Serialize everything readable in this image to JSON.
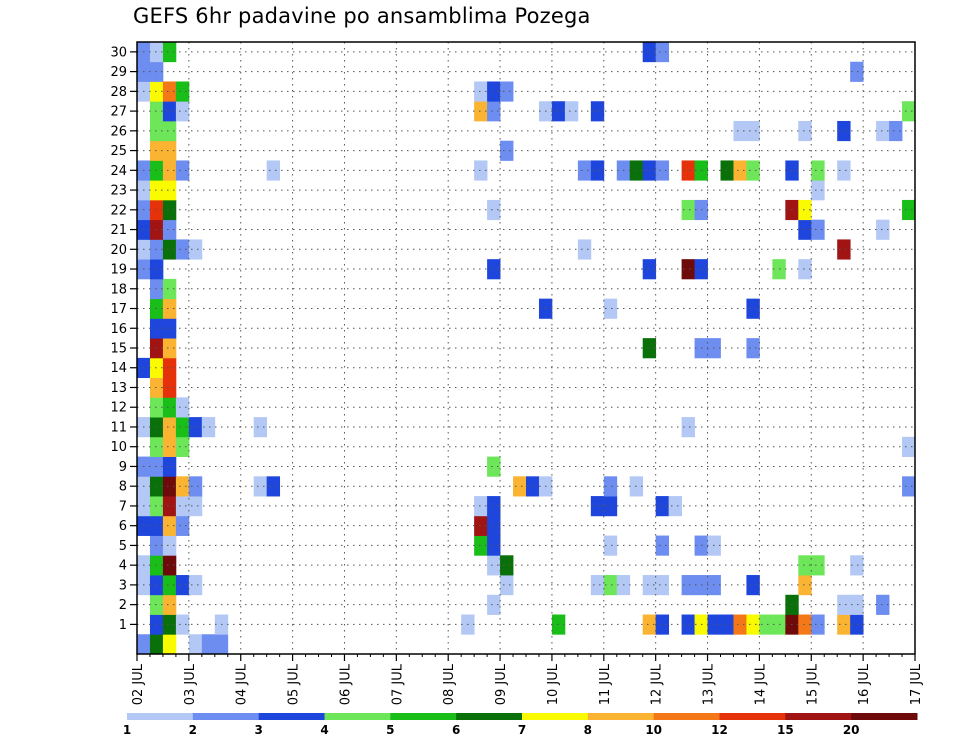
{
  "chart_data": {
    "type": "heatmap",
    "title": "GEFS 6hr padavine po ansamblima Pozega",
    "xlabel": "",
    "ylabel": "",
    "x_tick_labels": [
      "02 JUL",
      "03 JUL",
      "04 JUL",
      "05 JUL",
      "06 JUL",
      "07 JUL",
      "08 JUL",
      "09 JUL",
      "10 JUL",
      "11 JUL",
      "12 JUL",
      "13 JUL",
      "14 JUL",
      "15 JUL",
      "16 JUL",
      "17 JUL"
    ],
    "y_tick_labels": [
      "1",
      "2",
      "3",
      "4",
      "5",
      "6",
      "7",
      "8",
      "9",
      "10",
      "11",
      "12",
      "13",
      "14",
      "15",
      "16",
      "17",
      "18",
      "19",
      "20",
      "21",
      "22",
      "23",
      "24",
      "25",
      "26",
      "27",
      "28",
      "29",
      "30"
    ],
    "x_range": [
      "02 JUL",
      "17 JUL"
    ],
    "y_range": [
      0,
      30
    ],
    "step_hours": 6,
    "grid": true,
    "colorbar": {
      "position": "bottom",
      "labels": [
        "1",
        "2",
        "3",
        "4",
        "5",
        "6",
        "7",
        "8",
        "10",
        "12",
        "15",
        "20"
      ],
      "colors": [
        "#b4c8f5",
        "#6d8ef0",
        "#1e46dc",
        "#6ee65a",
        "#19be19",
        "#0a700a",
        "#fafa00",
        "#fab432",
        "#f57818",
        "#e6320a",
        "#a01414",
        "#6e0a0a"
      ]
    },
    "cells": [
      {
        "m": 0,
        "t": 0,
        "c": 2
      },
      {
        "m": 0,
        "t": 1,
        "c": 6
      },
      {
        "m": 0,
        "t": 2,
        "c": 7
      },
      {
        "m": 0,
        "t": 4,
        "c": 1
      },
      {
        "m": 0,
        "t": 5,
        "c": 2
      },
      {
        "m": 0,
        "t": 6,
        "c": 2
      },
      {
        "m": 1,
        "t": 1,
        "c": 3
      },
      {
        "m": 1,
        "t": 2,
        "c": 6
      },
      {
        "m": 1,
        "t": 3,
        "c": 1
      },
      {
        "m": 1,
        "t": 6,
        "c": 1
      },
      {
        "m": 1,
        "t": 25,
        "c": 1
      },
      {
        "m": 1,
        "t": 32,
        "c": 5
      },
      {
        "m": 1,
        "t": 39,
        "c": 8
      },
      {
        "m": 1,
        "t": 40,
        "c": 3
      },
      {
        "m": 1,
        "t": 42,
        "c": 3
      },
      {
        "m": 1,
        "t": 43,
        "c": 7
      },
      {
        "m": 1,
        "t": 44,
        "c": 3
      },
      {
        "m": 1,
        "t": 45,
        "c": 3
      },
      {
        "m": 1,
        "t": 46,
        "c": 9
      },
      {
        "m": 1,
        "t": 47,
        "c": 7
      },
      {
        "m": 1,
        "t": 48,
        "c": 4
      },
      {
        "m": 1,
        "t": 49,
        "c": 4
      },
      {
        "m": 1,
        "t": 50,
        "c": 12
      },
      {
        "m": 1,
        "t": 51,
        "c": 9
      },
      {
        "m": 1,
        "t": 52,
        "c": 2
      },
      {
        "m": 1,
        "t": 54,
        "c": 8
      },
      {
        "m": 1,
        "t": 55,
        "c": 3
      },
      {
        "m": 2,
        "t": 1,
        "c": 4
      },
      {
        "m": 2,
        "t": 2,
        "c": 8
      },
      {
        "m": 2,
        "t": 27,
        "c": 1
      },
      {
        "m": 2,
        "t": 50,
        "c": 6
      },
      {
        "m": 2,
        "t": 54,
        "c": 1
      },
      {
        "m": 2,
        "t": 55,
        "c": 1
      },
      {
        "m": 2,
        "t": 57,
        "c": 2
      },
      {
        "m": 3,
        "t": 0,
        "c": 1
      },
      {
        "m": 3,
        "t": 1,
        "c": 3
      },
      {
        "m": 3,
        "t": 2,
        "c": 5
      },
      {
        "m": 3,
        "t": 3,
        "c": 3
      },
      {
        "m": 3,
        "t": 4,
        "c": 1
      },
      {
        "m": 3,
        "t": 28,
        "c": 1
      },
      {
        "m": 3,
        "t": 35,
        "c": 1
      },
      {
        "m": 3,
        "t": 36,
        "c": 4
      },
      {
        "m": 3,
        "t": 37,
        "c": 1
      },
      {
        "m": 3,
        "t": 39,
        "c": 1
      },
      {
        "m": 3,
        "t": 40,
        "c": 1
      },
      {
        "m": 3,
        "t": 42,
        "c": 2
      },
      {
        "m": 3,
        "t": 43,
        "c": 2
      },
      {
        "m": 3,
        "t": 44,
        "c": 2
      },
      {
        "m": 3,
        "t": 47,
        "c": 3
      },
      {
        "m": 3,
        "t": 51,
        "c": 8
      },
      {
        "m": 4,
        "t": 0,
        "c": 1
      },
      {
        "m": 4,
        "t": 1,
        "c": 5
      },
      {
        "m": 4,
        "t": 2,
        "c": 12
      },
      {
        "m": 4,
        "t": 27,
        "c": 1
      },
      {
        "m": 4,
        "t": 28,
        "c": 6
      },
      {
        "m": 4,
        "t": 51,
        "c": 4
      },
      {
        "m": 4,
        "t": 52,
        "c": 4
      },
      {
        "m": 4,
        "t": 55,
        "c": 1
      },
      {
        "m": 5,
        "t": 1,
        "c": 2
      },
      {
        "m": 5,
        "t": 2,
        "c": 1
      },
      {
        "m": 5,
        "t": 26,
        "c": 5
      },
      {
        "m": 5,
        "t": 27,
        "c": 3
      },
      {
        "m": 5,
        "t": 36,
        "c": 1
      },
      {
        "m": 5,
        "t": 40,
        "c": 2
      },
      {
        "m": 5,
        "t": 43,
        "c": 2
      },
      {
        "m": 5,
        "t": 44,
        "c": 1
      },
      {
        "m": 6,
        "t": 0,
        "c": 3
      },
      {
        "m": 6,
        "t": 1,
        "c": 3
      },
      {
        "m": 6,
        "t": 2,
        "c": 8
      },
      {
        "m": 6,
        "t": 3,
        "c": 2
      },
      {
        "m": 6,
        "t": 26,
        "c": 11
      },
      {
        "m": 6,
        "t": 27,
        "c": 3
      },
      {
        "m": 7,
        "t": 0,
        "c": 1
      },
      {
        "m": 7,
        "t": 1,
        "c": 4
      },
      {
        "m": 7,
        "t": 2,
        "c": 11
      },
      {
        "m": 7,
        "t": 3,
        "c": 1
      },
      {
        "m": 7,
        "t": 4,
        "c": 1
      },
      {
        "m": 7,
        "t": 26,
        "c": 1
      },
      {
        "m": 7,
        "t": 27,
        "c": 3
      },
      {
        "m": 7,
        "t": 35,
        "c": 3
      },
      {
        "m": 7,
        "t": 36,
        "c": 3
      },
      {
        "m": 7,
        "t": 40,
        "c": 3
      },
      {
        "m": 7,
        "t": 41,
        "c": 1
      },
      {
        "m": 8,
        "t": 0,
        "c": 1
      },
      {
        "m": 8,
        "t": 1,
        "c": 6
      },
      {
        "m": 8,
        "t": 2,
        "c": 12
      },
      {
        "m": 8,
        "t": 3,
        "c": 8
      },
      {
        "m": 8,
        "t": 4,
        "c": 2
      },
      {
        "m": 8,
        "t": 9,
        "c": 1
      },
      {
        "m": 8,
        "t": 10,
        "c": 3
      },
      {
        "m": 8,
        "t": 29,
        "c": 8
      },
      {
        "m": 8,
        "t": 30,
        "c": 3
      },
      {
        "m": 8,
        "t": 31,
        "c": 1
      },
      {
        "m": 8,
        "t": 36,
        "c": 2
      },
      {
        "m": 8,
        "t": 38,
        "c": 1
      },
      {
        "m": 8,
        "t": 59,
        "c": 2
      },
      {
        "m": 9,
        "t": 0,
        "c": 2
      },
      {
        "m": 9,
        "t": 1,
        "c": 2
      },
      {
        "m": 9,
        "t": 2,
        "c": 3
      },
      {
        "m": 9,
        "t": 27,
        "c": 4
      },
      {
        "m": 10,
        "t": 1,
        "c": 4
      },
      {
        "m": 10,
        "t": 2,
        "c": 8
      },
      {
        "m": 10,
        "t": 3,
        "c": 4
      },
      {
        "m": 10,
        "t": 59,
        "c": 1
      },
      {
        "m": 11,
        "t": 0,
        "c": 1
      },
      {
        "m": 11,
        "t": 1,
        "c": 6
      },
      {
        "m": 11,
        "t": 2,
        "c": 8
      },
      {
        "m": 11,
        "t": 3,
        "c": 5
      },
      {
        "m": 11,
        "t": 4,
        "c": 3
      },
      {
        "m": 11,
        "t": 5,
        "c": 1
      },
      {
        "m": 11,
        "t": 9,
        "c": 1
      },
      {
        "m": 11,
        "t": 42,
        "c": 1
      },
      {
        "m": 12,
        "t": 1,
        "c": 4
      },
      {
        "m": 12,
        "t": 2,
        "c": 5
      },
      {
        "m": 12,
        "t": 3,
        "c": 1
      },
      {
        "m": 13,
        "t": 1,
        "c": 8
      },
      {
        "m": 13,
        "t": 2,
        "c": 10
      },
      {
        "m": 14,
        "t": 0,
        "c": 3
      },
      {
        "m": 14,
        "t": 1,
        "c": 7
      },
      {
        "m": 14,
        "t": 2,
        "c": 10
      },
      {
        "m": 15,
        "t": 1,
        "c": 11
      },
      {
        "m": 15,
        "t": 2,
        "c": 8
      },
      {
        "m": 15,
        "t": 39,
        "c": 6
      },
      {
        "m": 15,
        "t": 43,
        "c": 2
      },
      {
        "m": 15,
        "t": 44,
        "c": 2
      },
      {
        "m": 15,
        "t": 47,
        "c": 2
      },
      {
        "m": 16,
        "t": 1,
        "c": 3
      },
      {
        "m": 16,
        "t": 2,
        "c": 3
      },
      {
        "m": 17,
        "t": 1,
        "c": 5
      },
      {
        "m": 17,
        "t": 2,
        "c": 8
      },
      {
        "m": 17,
        "t": 31,
        "c": 3
      },
      {
        "m": 17,
        "t": 36,
        "c": 1
      },
      {
        "m": 17,
        "t": 47,
        "c": 3
      },
      {
        "m": 18,
        "t": 1,
        "c": 2
      },
      {
        "m": 18,
        "t": 2,
        "c": 4
      },
      {
        "m": 19,
        "t": 0,
        "c": 2
      },
      {
        "m": 19,
        "t": 1,
        "c": 3
      },
      {
        "m": 19,
        "t": 27,
        "c": 3
      },
      {
        "m": 19,
        "t": 39,
        "c": 3
      },
      {
        "m": 19,
        "t": 42,
        "c": 12
      },
      {
        "m": 19,
        "t": 43,
        "c": 3
      },
      {
        "m": 19,
        "t": 49,
        "c": 4
      },
      {
        "m": 19,
        "t": 51,
        "c": 1
      },
      {
        "m": 20,
        "t": 0,
        "c": 1
      },
      {
        "m": 20,
        "t": 1,
        "c": 2
      },
      {
        "m": 20,
        "t": 2,
        "c": 6
      },
      {
        "m": 20,
        "t": 3,
        "c": 2
      },
      {
        "m": 20,
        "t": 4,
        "c": 1
      },
      {
        "m": 20,
        "t": 34,
        "c": 1
      },
      {
        "m": 20,
        "t": 54,
        "c": 11
      },
      {
        "m": 21,
        "t": 0,
        "c": 3
      },
      {
        "m": 21,
        "t": 1,
        "c": 11
      },
      {
        "m": 21,
        "t": 2,
        "c": 2
      },
      {
        "m": 21,
        "t": 51,
        "c": 3
      },
      {
        "m": 21,
        "t": 52,
        "c": 2
      },
      {
        "m": 21,
        "t": 57,
        "c": 1
      },
      {
        "m": 22,
        "t": 0,
        "c": 2
      },
      {
        "m": 22,
        "t": 1,
        "c": 10
      },
      {
        "m": 22,
        "t": 2,
        "c": 6
      },
      {
        "m": 22,
        "t": 27,
        "c": 1
      },
      {
        "m": 22,
        "t": 42,
        "c": 4
      },
      {
        "m": 22,
        "t": 43,
        "c": 2
      },
      {
        "m": 22,
        "t": 50,
        "c": 11
      },
      {
        "m": 22,
        "t": 51,
        "c": 7
      },
      {
        "m": 22,
        "t": 59,
        "c": 5
      },
      {
        "m": 23,
        "t": 0,
        "c": 1
      },
      {
        "m": 23,
        "t": 1,
        "c": 7
      },
      {
        "m": 23,
        "t": 2,
        "c": 7
      },
      {
        "m": 23,
        "t": 52,
        "c": 1
      },
      {
        "m": 24,
        "t": 0,
        "c": 2
      },
      {
        "m": 24,
        "t": 1,
        "c": 5
      },
      {
        "m": 24,
        "t": 2,
        "c": 8
      },
      {
        "m": 24,
        "t": 3,
        "c": 2
      },
      {
        "m": 24,
        "t": 10,
        "c": 1
      },
      {
        "m": 24,
        "t": 26,
        "c": 1
      },
      {
        "m": 24,
        "t": 34,
        "c": 2
      },
      {
        "m": 24,
        "t": 35,
        "c": 3
      },
      {
        "m": 24,
        "t": 37,
        "c": 2
      },
      {
        "m": 24,
        "t": 38,
        "c": 6
      },
      {
        "m": 24,
        "t": 39,
        "c": 3
      },
      {
        "m": 24,
        "t": 40,
        "c": 2
      },
      {
        "m": 24,
        "t": 42,
        "c": 10
      },
      {
        "m": 24,
        "t": 43,
        "c": 5
      },
      {
        "m": 24,
        "t": 45,
        "c": 6
      },
      {
        "m": 24,
        "t": 46,
        "c": 8
      },
      {
        "m": 24,
        "t": 47,
        "c": 4
      },
      {
        "m": 24,
        "t": 50,
        "c": 3
      },
      {
        "m": 24,
        "t": 52,
        "c": 4
      },
      {
        "m": 24,
        "t": 54,
        "c": 1
      },
      {
        "m": 25,
        "t": 1,
        "c": 8
      },
      {
        "m": 25,
        "t": 2,
        "c": 8
      },
      {
        "m": 25,
        "t": 28,
        "c": 2
      },
      {
        "m": 26,
        "t": 1,
        "c": 4
      },
      {
        "m": 26,
        "t": 2,
        "c": 4
      },
      {
        "m": 26,
        "t": 46,
        "c": 1
      },
      {
        "m": 26,
        "t": 47,
        "c": 1
      },
      {
        "m": 26,
        "t": 51,
        "c": 1
      },
      {
        "m": 26,
        "t": 54,
        "c": 3
      },
      {
        "m": 26,
        "t": 57,
        "c": 1
      },
      {
        "m": 26,
        "t": 58,
        "c": 2
      },
      {
        "m": 27,
        "t": 1,
        "c": 4
      },
      {
        "m": 27,
        "t": 2,
        "c": 3
      },
      {
        "m": 27,
        "t": 3,
        "c": 1
      },
      {
        "m": 27,
        "t": 26,
        "c": 8
      },
      {
        "m": 27,
        "t": 27,
        "c": 2
      },
      {
        "m": 27,
        "t": 31,
        "c": 1
      },
      {
        "m": 27,
        "t": 32,
        "c": 3
      },
      {
        "m": 27,
        "t": 33,
        "c": 1
      },
      {
        "m": 27,
        "t": 35,
        "c": 3
      },
      {
        "m": 27,
        "t": 59,
        "c": 4
      },
      {
        "m": 28,
        "t": 0,
        "c": 1
      },
      {
        "m": 28,
        "t": 1,
        "c": 7
      },
      {
        "m": 28,
        "t": 2,
        "c": 9
      },
      {
        "m": 28,
        "t": 3,
        "c": 5
      },
      {
        "m": 28,
        "t": 26,
        "c": 1
      },
      {
        "m": 28,
        "t": 27,
        "c": 3
      },
      {
        "m": 28,
        "t": 28,
        "c": 2
      },
      {
        "m": 29,
        "t": 0,
        "c": 2
      },
      {
        "m": 29,
        "t": 1,
        "c": 2
      },
      {
        "m": 29,
        "t": 55,
        "c": 2
      },
      {
        "m": 30,
        "t": 0,
        "c": 2
      },
      {
        "m": 30,
        "t": 1,
        "c": 1
      },
      {
        "m": 30,
        "t": 2,
        "c": 5
      },
      {
        "m": 30,
        "t": 39,
        "c": 3
      },
      {
        "m": 30,
        "t": 40,
        "c": 2
      }
    ]
  }
}
